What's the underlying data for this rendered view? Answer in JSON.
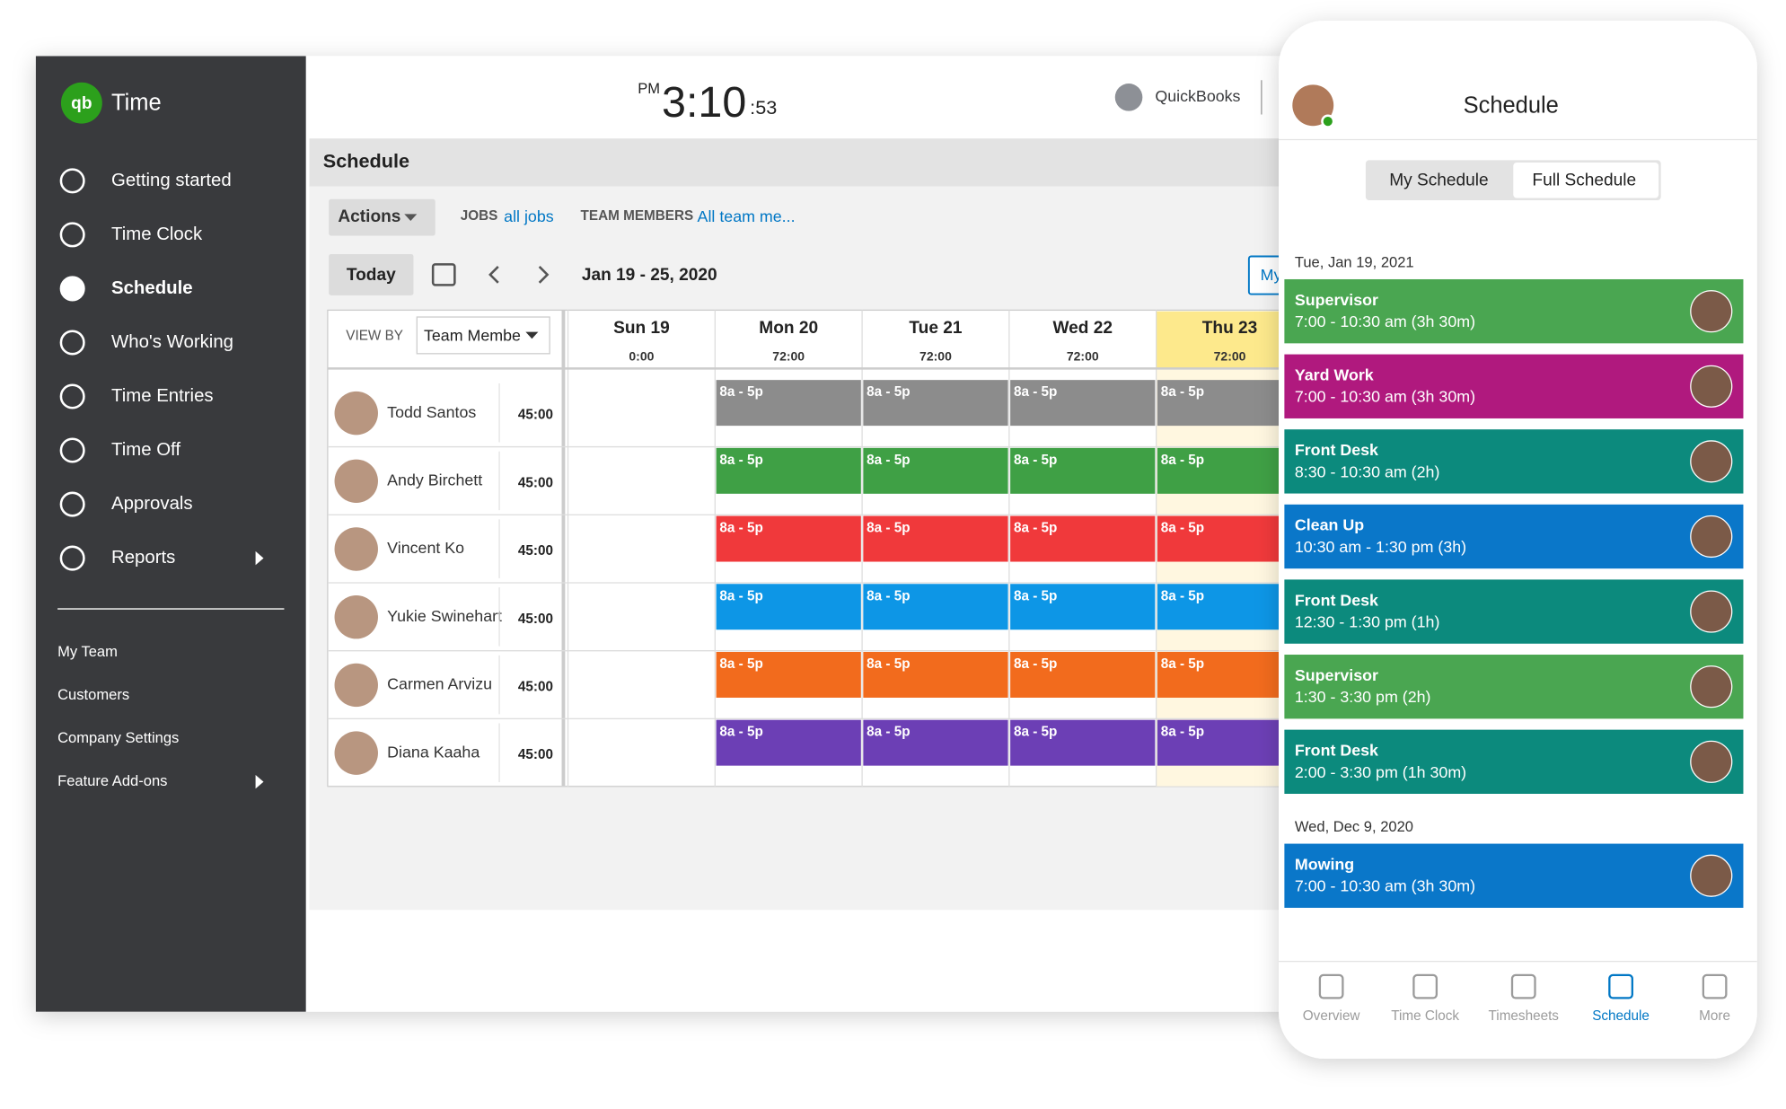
{
  "app": {
    "name": "Time",
    "clock": {
      "ampm": "PM",
      "hm": "3:10",
      "sec": ":53"
    },
    "brand": "QuickBooks"
  },
  "nav": {
    "items": [
      "Getting started",
      "Time Clock",
      "Schedule",
      "Who's Working",
      "Time Entries",
      "Time Off",
      "Approvals",
      "Reports"
    ],
    "active": 2,
    "links": [
      "My Team",
      "Customers",
      "Company Settings",
      "Feature Add-ons"
    ]
  },
  "schedule": {
    "title": "Schedule",
    "actions": "Actions",
    "jobs_label": "JOBS",
    "jobs_value": "all jobs",
    "team_label": "TEAM MEMBERS",
    "team_value": "All team me...",
    "today": "Today",
    "range": "Jan 19 - 25, 2020",
    "my": "My",
    "view_by_label": "VIEW BY",
    "view_by_value": "Team Membe",
    "shift_label": "8a - 5p",
    "days": [
      {
        "label": "Sun 19",
        "total": "0:00"
      },
      {
        "label": "Mon 20",
        "total": "72:00"
      },
      {
        "label": "Tue 21",
        "total": "72:00"
      },
      {
        "label": "Wed 22",
        "total": "72:00"
      },
      {
        "label": "Thu 23",
        "total": "72:00"
      }
    ],
    "today_index": 4,
    "members": [
      {
        "name": "Todd Santos",
        "hours": "45:00",
        "color": "#8c8c8c"
      },
      {
        "name": "Andy Birchett",
        "hours": "45:00",
        "color": "#3fa045"
      },
      {
        "name": "Vincent Ko",
        "hours": "45:00",
        "color": "#f0393b"
      },
      {
        "name": "Yukie Swinehart",
        "hours": "45:00",
        "color": "#0d96e6"
      },
      {
        "name": "Carmen Arvizu",
        "hours": "45:00",
        "color": "#f26b1d"
      },
      {
        "name": "Diana Kaaha",
        "hours": "45:00",
        "color": "#6c3fb5"
      }
    ]
  },
  "mobile": {
    "title": "Schedule",
    "tabs": [
      "My Schedule",
      "Full Schedule"
    ],
    "active_tab": 1,
    "groups": [
      {
        "date": "Tue, Jan 19, 2021",
        "shifts": [
          {
            "job": "Supervisor",
            "time": "7:00 - 10:30 am (3h 30m)",
            "color": "#4aa651"
          },
          {
            "job": "Yard Work",
            "time": "7:00 - 10:30 am (3h 30m)",
            "color": "#b0197e"
          },
          {
            "job": "Front Desk",
            "time": "8:30 - 10:30 am (2h)",
            "color": "#0c8a7d"
          },
          {
            "job": "Clean Up",
            "time": "10:30 am - 1:30 pm (3h)",
            "color": "#0a77c9"
          },
          {
            "job": "Front Desk",
            "time": "12:30 - 1:30 pm (1h)",
            "color": "#0c8a7d"
          },
          {
            "job": "Supervisor",
            "time": "1:30 - 3:30 pm (2h)",
            "color": "#4aa651"
          },
          {
            "job": "Front Desk",
            "time": "2:00 - 3:30 pm (1h 30m)",
            "color": "#0c8a7d"
          }
        ]
      },
      {
        "date": "Wed, Dec 9, 2020",
        "shifts": [
          {
            "job": "Mowing",
            "time": "7:00 - 10:30 am (3h 30m)",
            "color": "#0a77c9"
          }
        ]
      }
    ],
    "tabbar": [
      "Overview",
      "Time Clock",
      "Timesheets",
      "Schedule",
      "More"
    ],
    "active_tabbar": 3
  }
}
